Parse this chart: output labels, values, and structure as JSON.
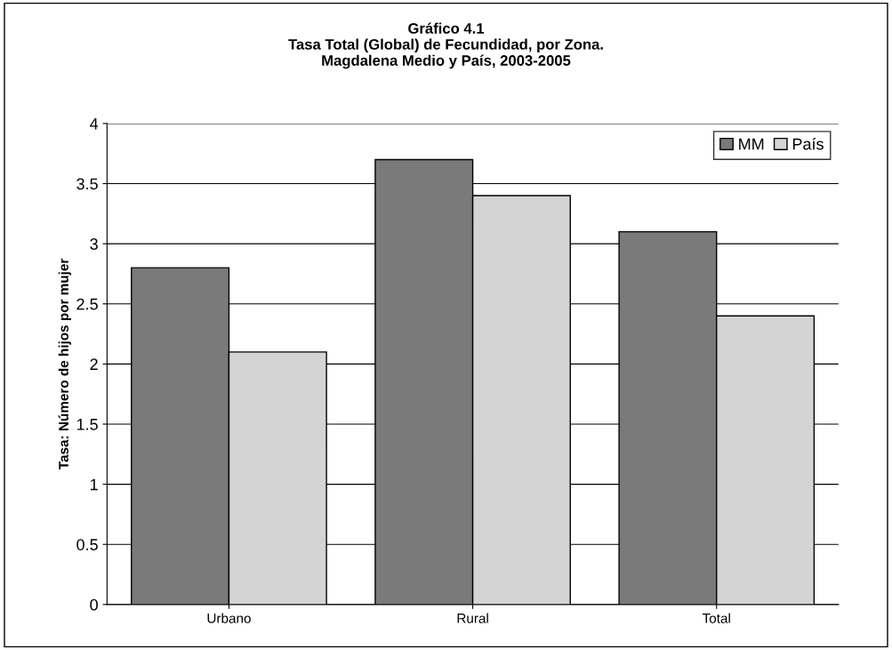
{
  "chart_data": {
    "type": "bar",
    "title": "Gráfico 4.1\nTasa Total (Global) de Fecundidad, por Zona.\nMagdalena Medio y País, 2003-2005",
    "ylabel": "Tasa: Número de hijos por mujer",
    "categories": [
      "Urbano",
      "Rural",
      "Total"
    ],
    "series": [
      {
        "name": "MM",
        "color": "#7a7a7a",
        "values": [
          2.8,
          3.7,
          3.1
        ]
      },
      {
        "name": "País",
        "color": "#d4d4d4",
        "values": [
          2.1,
          3.4,
          2.4
        ]
      }
    ],
    "ylim": [
      0,
      4
    ],
    "yticks": [
      0,
      0.5,
      1,
      1.5,
      2,
      2.5,
      3,
      3.5,
      4
    ],
    "grid": "y",
    "legend": "top right"
  }
}
